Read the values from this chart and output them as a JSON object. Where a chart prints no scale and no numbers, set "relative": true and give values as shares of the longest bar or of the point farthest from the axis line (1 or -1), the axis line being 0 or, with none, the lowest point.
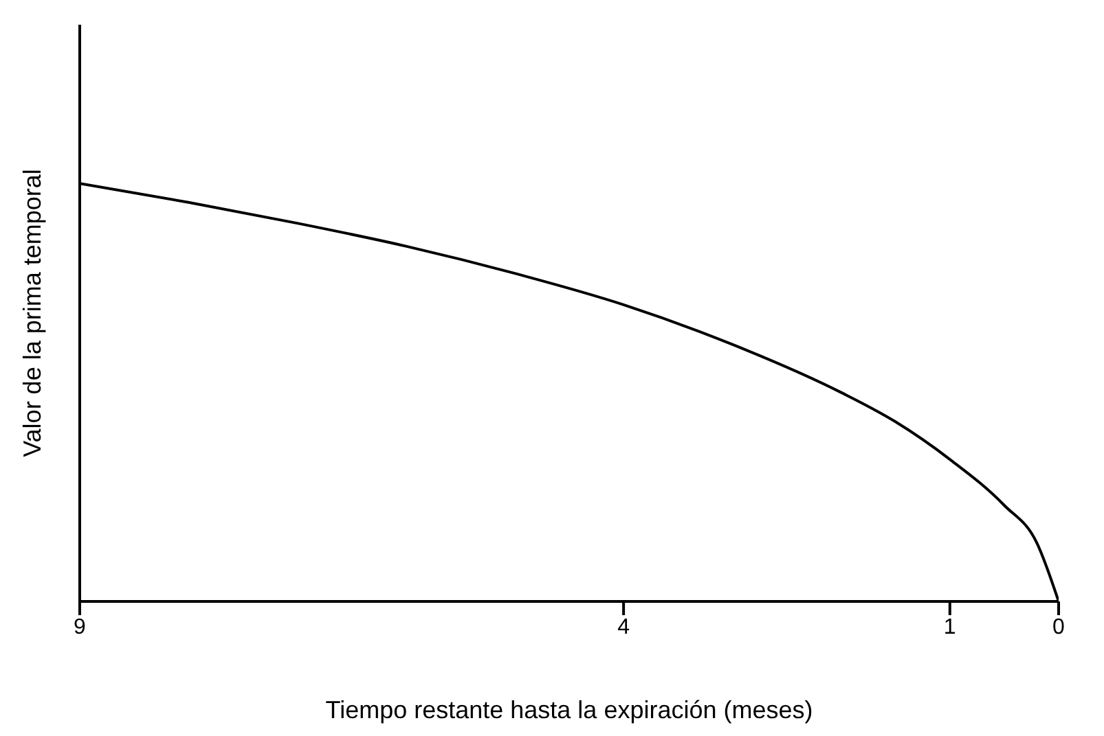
{
  "chart_data": {
    "type": "line",
    "relative": true,
    "xlabel": "Tiempo restante hasta la expiración (meses)",
    "ylabel": "Valor de la prima temporal",
    "xlim": [
      9,
      0
    ],
    "xticks": [
      9,
      4,
      1,
      0
    ],
    "grid": false,
    "legend": false,
    "marker": "none",
    "line_style": "solid",
    "series": [
      {
        "color": "#000000",
        "x": [
          9,
          8,
          7,
          6,
          5,
          4,
          3,
          2,
          1.5,
          1,
          0.5,
          0.2,
          0
        ],
        "values": [
          1,
          0.955,
          0.905,
          0.85,
          0.785,
          0.71,
          0.615,
          0.5,
          0.43,
          0.34,
          0.23,
          0.14,
          0
        ]
      }
    ]
  }
}
